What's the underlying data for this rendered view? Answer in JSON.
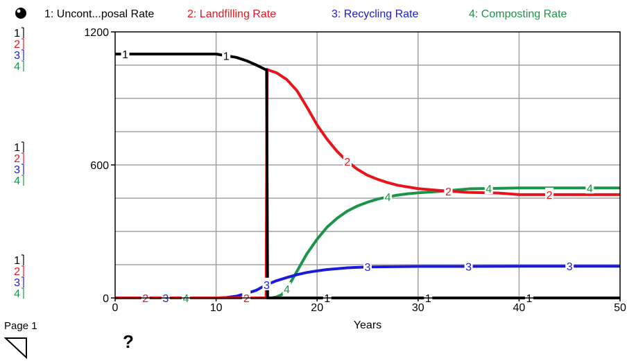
{
  "legend": [
    {
      "num": "1",
      "label": "1: Uncont...posal Rate",
      "color": "#000000"
    },
    {
      "num": "2",
      "label": "2: Landfilling Rate",
      "color": "#e8141c"
    },
    {
      "num": "3",
      "label": "3: Recycling Rate",
      "color": "#1a1adc"
    },
    {
      "num": "4",
      "label": "4: Composting Rate",
      "color": "#1a9448"
    }
  ],
  "scale_keys": [
    "1",
    "2",
    "3",
    "4"
  ],
  "footer": {
    "page_label": "Page 1",
    "help_label": "?"
  },
  "chart_data": {
    "type": "line",
    "xlabel": "Years",
    "ylabel": "",
    "xlim": [
      0,
      50
    ],
    "ylim": [
      0,
      1200
    ],
    "xticks": [
      0,
      10,
      20,
      30,
      40,
      50
    ],
    "yticks": [
      0,
      600,
      1200
    ],
    "grid": true,
    "legend_position": "top",
    "series": [
      {
        "name": "1: Uncont...posal Rate",
        "num": "1",
        "color": "#000000",
        "x": [
          0,
          10,
          12,
          13,
          14,
          14.9,
          15.0,
          15.1,
          15.4,
          50
        ],
        "y": [
          1100,
          1100,
          1085,
          1070,
          1050,
          1030,
          1030,
          0,
          0,
          0
        ]
      },
      {
        "name": "2: Landfilling Rate",
        "num": "2",
        "color": "#e8141c",
        "x": [
          0,
          14.8,
          14.95,
          15.05,
          16,
          17,
          18,
          19,
          20,
          21,
          22,
          23,
          24,
          25,
          26,
          27,
          28,
          30,
          32,
          35,
          38,
          40,
          45,
          50
        ],
        "y": [
          0,
          0,
          0,
          1030,
          1015,
          985,
          935,
          860,
          780,
          715,
          660,
          615,
          580,
          553,
          535,
          520,
          508,
          493,
          485,
          476,
          473,
          466,
          466,
          466
        ]
      },
      {
        "name": "3: Recycling Rate",
        "num": "3",
        "color": "#1a1adc",
        "x": [
          0,
          10,
          11,
          12,
          13,
          14,
          15,
          16,
          17,
          18,
          19,
          20,
          21,
          22,
          23,
          25,
          30,
          35,
          40,
          50
        ],
        "y": [
          0,
          0,
          2,
          8,
          20,
          35,
          60,
          78,
          92,
          105,
          115,
          122,
          128,
          132,
          136,
          140,
          142,
          142,
          143,
          143
        ]
      },
      {
        "name": "4: Composting Rate",
        "num": "4",
        "color": "#1a9448",
        "x": [
          0,
          14,
          15.5,
          16,
          16.5,
          17,
          18,
          19,
          20,
          21,
          22,
          23,
          24,
          25,
          26,
          27,
          28,
          29,
          30,
          32,
          35,
          40,
          50
        ],
        "y": [
          0,
          0,
          0,
          5,
          15,
          40,
          120,
          200,
          265,
          320,
          360,
          392,
          415,
          432,
          446,
          456,
          464,
          470,
          474,
          480,
          492,
          496,
          496
        ]
      }
    ],
    "series_markers": [
      {
        "num": "1",
        "x": [
          1,
          11,
          21,
          31,
          41
        ]
      },
      {
        "num": "2",
        "x": [
          3,
          13,
          23,
          33,
          43
        ]
      },
      {
        "num": "3",
        "x": [
          5,
          15,
          25,
          35,
          45
        ]
      },
      {
        "num": "4",
        "x": [
          7,
          17,
          27,
          37,
          47
        ]
      }
    ]
  }
}
